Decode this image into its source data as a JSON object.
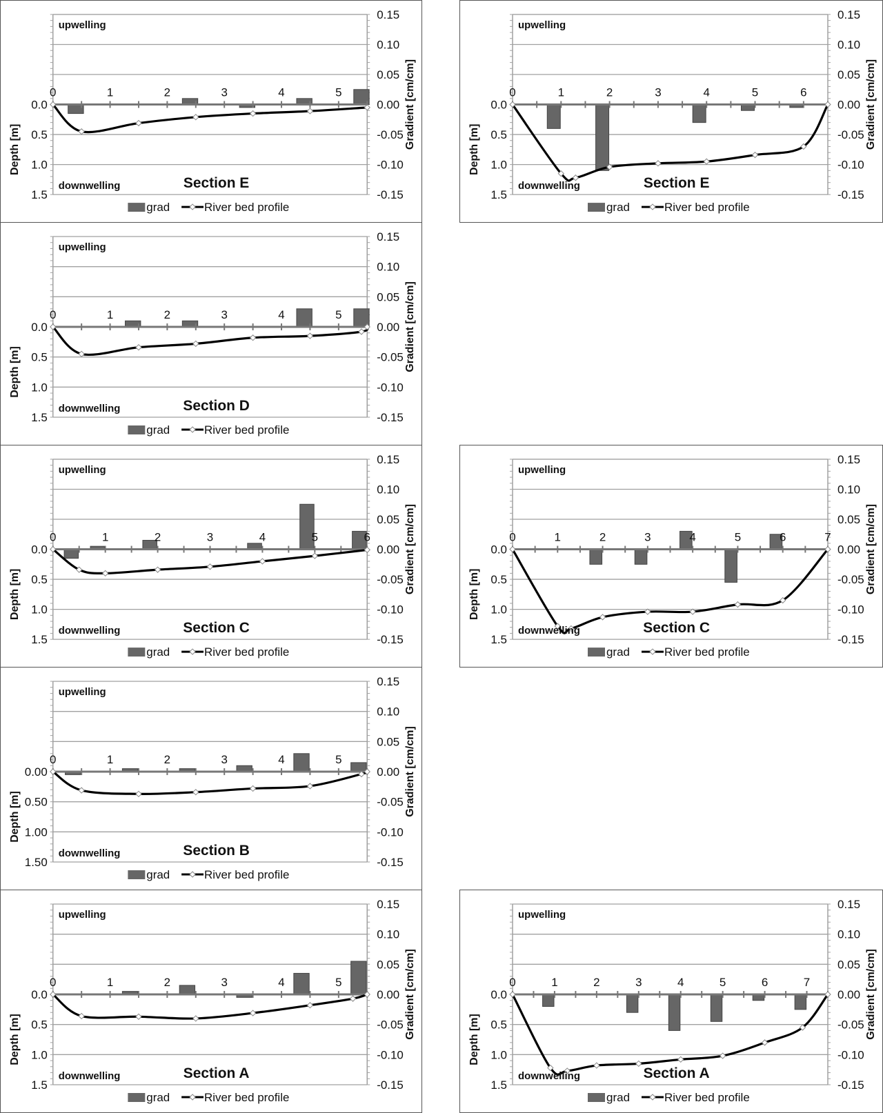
{
  "labels": {
    "upwelling": "upwelling",
    "downwelling": "downwelling",
    "ylabel_left": "Depth [m]",
    "ylabel_right": "Gradient [cm/cm]",
    "legend_bar": "grad",
    "legend_line": "River bed profile"
  },
  "colors": {
    "bar": "#666666",
    "line": "#000000",
    "grid": "#a0a0a0",
    "axis": "#777777"
  },
  "chart_data": [
    {
      "type": "bar+line",
      "title": "Section E",
      "x_max": 5.5,
      "xticks": [
        0,
        1,
        2,
        3,
        4,
        5
      ],
      "depth_ticks": [
        "0.0",
        "0.5",
        "1.0",
        "1.5"
      ],
      "grad_ticks": [
        "0.15",
        "0.10",
        "0.05",
        "0.00",
        "-0.05",
        "-0.10",
        "-0.15"
      ],
      "ylim_depth": [
        0,
        1.5
      ],
      "ylim_gradient": [
        -0.15,
        0.15
      ],
      "grid": true,
      "legend": "bottom",
      "bars": [
        {
          "x": 0.4,
          "grad": -0.015
        },
        {
          "x": 2.4,
          "grad": 0.01
        },
        {
          "x": 3.4,
          "grad": -0.005
        },
        {
          "x": 4.4,
          "grad": 0.01
        },
        {
          "x": 5.4,
          "grad": 0.025
        }
      ],
      "profile": [
        {
          "x": 0,
          "depth": 0
        },
        {
          "x": 0.5,
          "depth": 0.45
        },
        {
          "x": 1.5,
          "depth": 0.31
        },
        {
          "x": 2.5,
          "depth": 0.21
        },
        {
          "x": 3.5,
          "depth": 0.15
        },
        {
          "x": 4.5,
          "depth": 0.11
        },
        {
          "x": 5.5,
          "depth": 0.05
        }
      ]
    },
    {
      "type": "bar+line",
      "title": "Section D",
      "x_max": 5.5,
      "xticks": [
        0,
        1,
        2,
        3,
        4,
        5
      ],
      "depth_ticks": [
        "0.0",
        "0.5",
        "1.0",
        "1.5"
      ],
      "grad_ticks": [
        "0.15",
        "0.10",
        "0.05",
        "0.00",
        "-0.05",
        "-0.10",
        "-0.15"
      ],
      "ylim_depth": [
        0,
        1.5
      ],
      "ylim_gradient": [
        -0.15,
        0.15
      ],
      "grid": true,
      "legend": "bottom",
      "bars": [
        {
          "x": 1.4,
          "grad": 0.01
        },
        {
          "x": 2.4,
          "grad": 0.01
        },
        {
          "x": 4.4,
          "grad": 0.03
        },
        {
          "x": 5.4,
          "grad": 0.03
        }
      ],
      "profile": [
        {
          "x": 0,
          "depth": 0
        },
        {
          "x": 0.5,
          "depth": 0.45
        },
        {
          "x": 1.5,
          "depth": 0.34
        },
        {
          "x": 2.5,
          "depth": 0.28
        },
        {
          "x": 3.5,
          "depth": 0.18
        },
        {
          "x": 4.5,
          "depth": 0.15
        },
        {
          "x": 5.4,
          "depth": 0.08
        },
        {
          "x": 5.5,
          "depth": 0
        }
      ]
    },
    {
      "type": "bar+line",
      "title": "Section C",
      "x_max": 6,
      "xticks": [
        0,
        1,
        2,
        3,
        4,
        5,
        6
      ],
      "depth_ticks": [
        "0.0",
        "0.5",
        "1.0",
        "1.5"
      ],
      "grad_ticks": [
        "0.15",
        "0.10",
        "0.05",
        "0.00",
        "-0.05",
        "-0.10",
        "-0.15"
      ],
      "ylim_depth": [
        0,
        1.5
      ],
      "ylim_gradient": [
        -0.15,
        0.15
      ],
      "grid": true,
      "legend": "bottom",
      "bars": [
        {
          "x": 0.35,
          "grad": -0.015
        },
        {
          "x": 0.85,
          "grad": 0.005
        },
        {
          "x": 1.85,
          "grad": 0.015
        },
        {
          "x": 3.85,
          "grad": 0.01
        },
        {
          "x": 4.85,
          "grad": 0.075
        },
        {
          "x": 5.85,
          "grad": 0.03
        }
      ],
      "profile": [
        {
          "x": 0,
          "depth": 0
        },
        {
          "x": 0.5,
          "depth": 0.34
        },
        {
          "x": 1,
          "depth": 0.4
        },
        {
          "x": 2,
          "depth": 0.34
        },
        {
          "x": 3,
          "depth": 0.29
        },
        {
          "x": 4,
          "depth": 0.2
        },
        {
          "x": 5,
          "depth": 0.11
        },
        {
          "x": 6,
          "depth": 0.01
        }
      ]
    },
    {
      "type": "bar+line",
      "title": "Section B",
      "x_max": 5.5,
      "xticks": [
        0,
        1,
        2,
        3,
        4,
        5
      ],
      "depth_ticks": [
        "0.00",
        "0.50",
        "1.00",
        "1.50"
      ],
      "grad_ticks": [
        "0.15",
        "0.10",
        "0.05",
        "0.00",
        "-0.05",
        "-0.10",
        "-0.15"
      ],
      "ylim_depth": [
        0,
        1.5
      ],
      "ylim_gradient": [
        -0.15,
        0.15
      ],
      "grid": true,
      "legend": "bottom",
      "bars": [
        {
          "x": 0.35,
          "grad": -0.005
        },
        {
          "x": 1.35,
          "grad": 0.005
        },
        {
          "x": 2.35,
          "grad": 0.005
        },
        {
          "x": 3.35,
          "grad": 0.01
        },
        {
          "x": 4.35,
          "grad": 0.03
        },
        {
          "x": 5.35,
          "grad": 0.015
        }
      ],
      "profile": [
        {
          "x": 0,
          "depth": 0
        },
        {
          "x": 0.5,
          "depth": 0.31
        },
        {
          "x": 1.5,
          "depth": 0.37
        },
        {
          "x": 2.5,
          "depth": 0.34
        },
        {
          "x": 3.5,
          "depth": 0.28
        },
        {
          "x": 4.5,
          "depth": 0.24
        },
        {
          "x": 5.4,
          "depth": 0.04
        },
        {
          "x": 5.5,
          "depth": 0
        }
      ]
    },
    {
      "type": "bar+line",
      "title": "Section A",
      "x_max": 5.5,
      "xticks": [
        0,
        1,
        2,
        3,
        4,
        5
      ],
      "depth_ticks": [
        "0.0",
        "0.5",
        "1.0",
        "1.5"
      ],
      "grad_ticks": [
        "0.15",
        "0.10",
        "0.05",
        "0.00",
        "-0.05",
        "-0.10",
        "-0.15"
      ],
      "ylim_depth": [
        0,
        1.5
      ],
      "ylim_gradient": [
        -0.15,
        0.15
      ],
      "grid": true,
      "legend": "bottom",
      "bars": [
        {
          "x": 1.35,
          "grad": 0.005
        },
        {
          "x": 2.35,
          "grad": 0.015
        },
        {
          "x": 3.35,
          "grad": -0.005
        },
        {
          "x": 4.35,
          "grad": 0.035
        },
        {
          "x": 5.35,
          "grad": 0.055
        }
      ],
      "profile": [
        {
          "x": 0,
          "depth": 0
        },
        {
          "x": 0.5,
          "depth": 0.36
        },
        {
          "x": 1.5,
          "depth": 0.37
        },
        {
          "x": 2.5,
          "depth": 0.4
        },
        {
          "x": 3.5,
          "depth": 0.31
        },
        {
          "x": 4.5,
          "depth": 0.18
        },
        {
          "x": 5.25,
          "depth": 0.07
        },
        {
          "x": 5.5,
          "depth": 0
        }
      ]
    },
    {
      "type": "bar+line",
      "title": "Section E",
      "x_max": 6.5,
      "xticks": [
        0,
        1,
        2,
        3,
        4,
        5,
        6
      ],
      "depth_ticks": [
        "0.0",
        "0.5",
        "1.0",
        "1.5"
      ],
      "grad_ticks": [
        "0.15",
        "0.10",
        "0.05",
        "0.00",
        "-0.05",
        "-0.10",
        "-0.15"
      ],
      "ylim_depth": [
        0,
        1.5
      ],
      "ylim_gradient": [
        -0.15,
        0.15
      ],
      "grid": true,
      "legend": "bottom",
      "bars": [
        {
          "x": 0.85,
          "grad": -0.04
        },
        {
          "x": 1.85,
          "grad": -0.11
        },
        {
          "x": 3.85,
          "grad": -0.03
        },
        {
          "x": 4.85,
          "grad": -0.01
        },
        {
          "x": 5.85,
          "grad": -0.005
        }
      ],
      "profile": [
        {
          "x": 0,
          "depth": 0
        },
        {
          "x": 1,
          "depth": 1.15
        },
        {
          "x": 1.3,
          "depth": 1.22
        },
        {
          "x": 2,
          "depth": 1.04
        },
        {
          "x": 3,
          "depth": 0.98
        },
        {
          "x": 4,
          "depth": 0.95
        },
        {
          "x": 5,
          "depth": 0.84
        },
        {
          "x": 6,
          "depth": 0.7
        },
        {
          "x": 6.5,
          "depth": 0
        }
      ]
    },
    {
      "type": "bar+line",
      "title": "Section C",
      "x_max": 7,
      "xticks": [
        0,
        1,
        2,
        3,
        4,
        5,
        6,
        7
      ],
      "depth_ticks": [
        "0.0",
        "0.5",
        "1.0",
        "1.5"
      ],
      "grad_ticks": [
        "0.15",
        "0.10",
        "0.05",
        "0.00",
        "-0.05",
        "-0.10",
        "-0.15"
      ],
      "ylim_depth": [
        0,
        1.5
      ],
      "ylim_gradient": [
        -0.15,
        0.15
      ],
      "grid": true,
      "legend": "bottom",
      "bars": [
        {
          "x": 1.85,
          "grad": -0.025
        },
        {
          "x": 2.85,
          "grad": -0.025
        },
        {
          "x": 3.85,
          "grad": 0.03
        },
        {
          "x": 4.85,
          "grad": -0.055
        },
        {
          "x": 5.85,
          "grad": 0.025
        }
      ],
      "profile": [
        {
          "x": 0,
          "depth": 0
        },
        {
          "x": 1,
          "depth": 1.28
        },
        {
          "x": 1.3,
          "depth": 1.32
        },
        {
          "x": 2,
          "depth": 1.13
        },
        {
          "x": 3,
          "depth": 1.04
        },
        {
          "x": 4,
          "depth": 1.04
        },
        {
          "x": 5,
          "depth": 0.92
        },
        {
          "x": 6,
          "depth": 0.85
        },
        {
          "x": 7,
          "depth": 0
        }
      ]
    },
    {
      "type": "bar+line",
      "title": "Section A",
      "x_max": 7.5,
      "xticks": [
        0,
        1,
        2,
        3,
        4,
        5,
        6,
        7
      ],
      "depth_ticks": [
        "0.0",
        "0.5",
        "1.0",
        "1.5"
      ],
      "grad_ticks": [
        "0.15",
        "0.10",
        "0.05",
        "0.00",
        "-0.05",
        "-0.10",
        "-0.15"
      ],
      "ylim_depth": [
        0,
        1.5
      ],
      "ylim_gradient": [
        -0.15,
        0.15
      ],
      "grid": true,
      "legend": "bottom",
      "bars": [
        {
          "x": 0.85,
          "grad": -0.02
        },
        {
          "x": 2.85,
          "grad": -0.03
        },
        {
          "x": 3.85,
          "grad": -0.06
        },
        {
          "x": 4.85,
          "grad": -0.045
        },
        {
          "x": 5.85,
          "grad": -0.01
        },
        {
          "x": 6.85,
          "grad": -0.025
        }
      ],
      "profile": [
        {
          "x": 0,
          "depth": 0
        },
        {
          "x": 0.9,
          "depth": 1.22
        },
        {
          "x": 1.3,
          "depth": 1.27
        },
        {
          "x": 2,
          "depth": 1.18
        },
        {
          "x": 3,
          "depth": 1.15
        },
        {
          "x": 4,
          "depth": 1.08
        },
        {
          "x": 5,
          "depth": 1.02
        },
        {
          "x": 6,
          "depth": 0.8
        },
        {
          "x": 6.9,
          "depth": 0.55
        },
        {
          "x": 7.5,
          "depth": 0
        }
      ]
    }
  ]
}
